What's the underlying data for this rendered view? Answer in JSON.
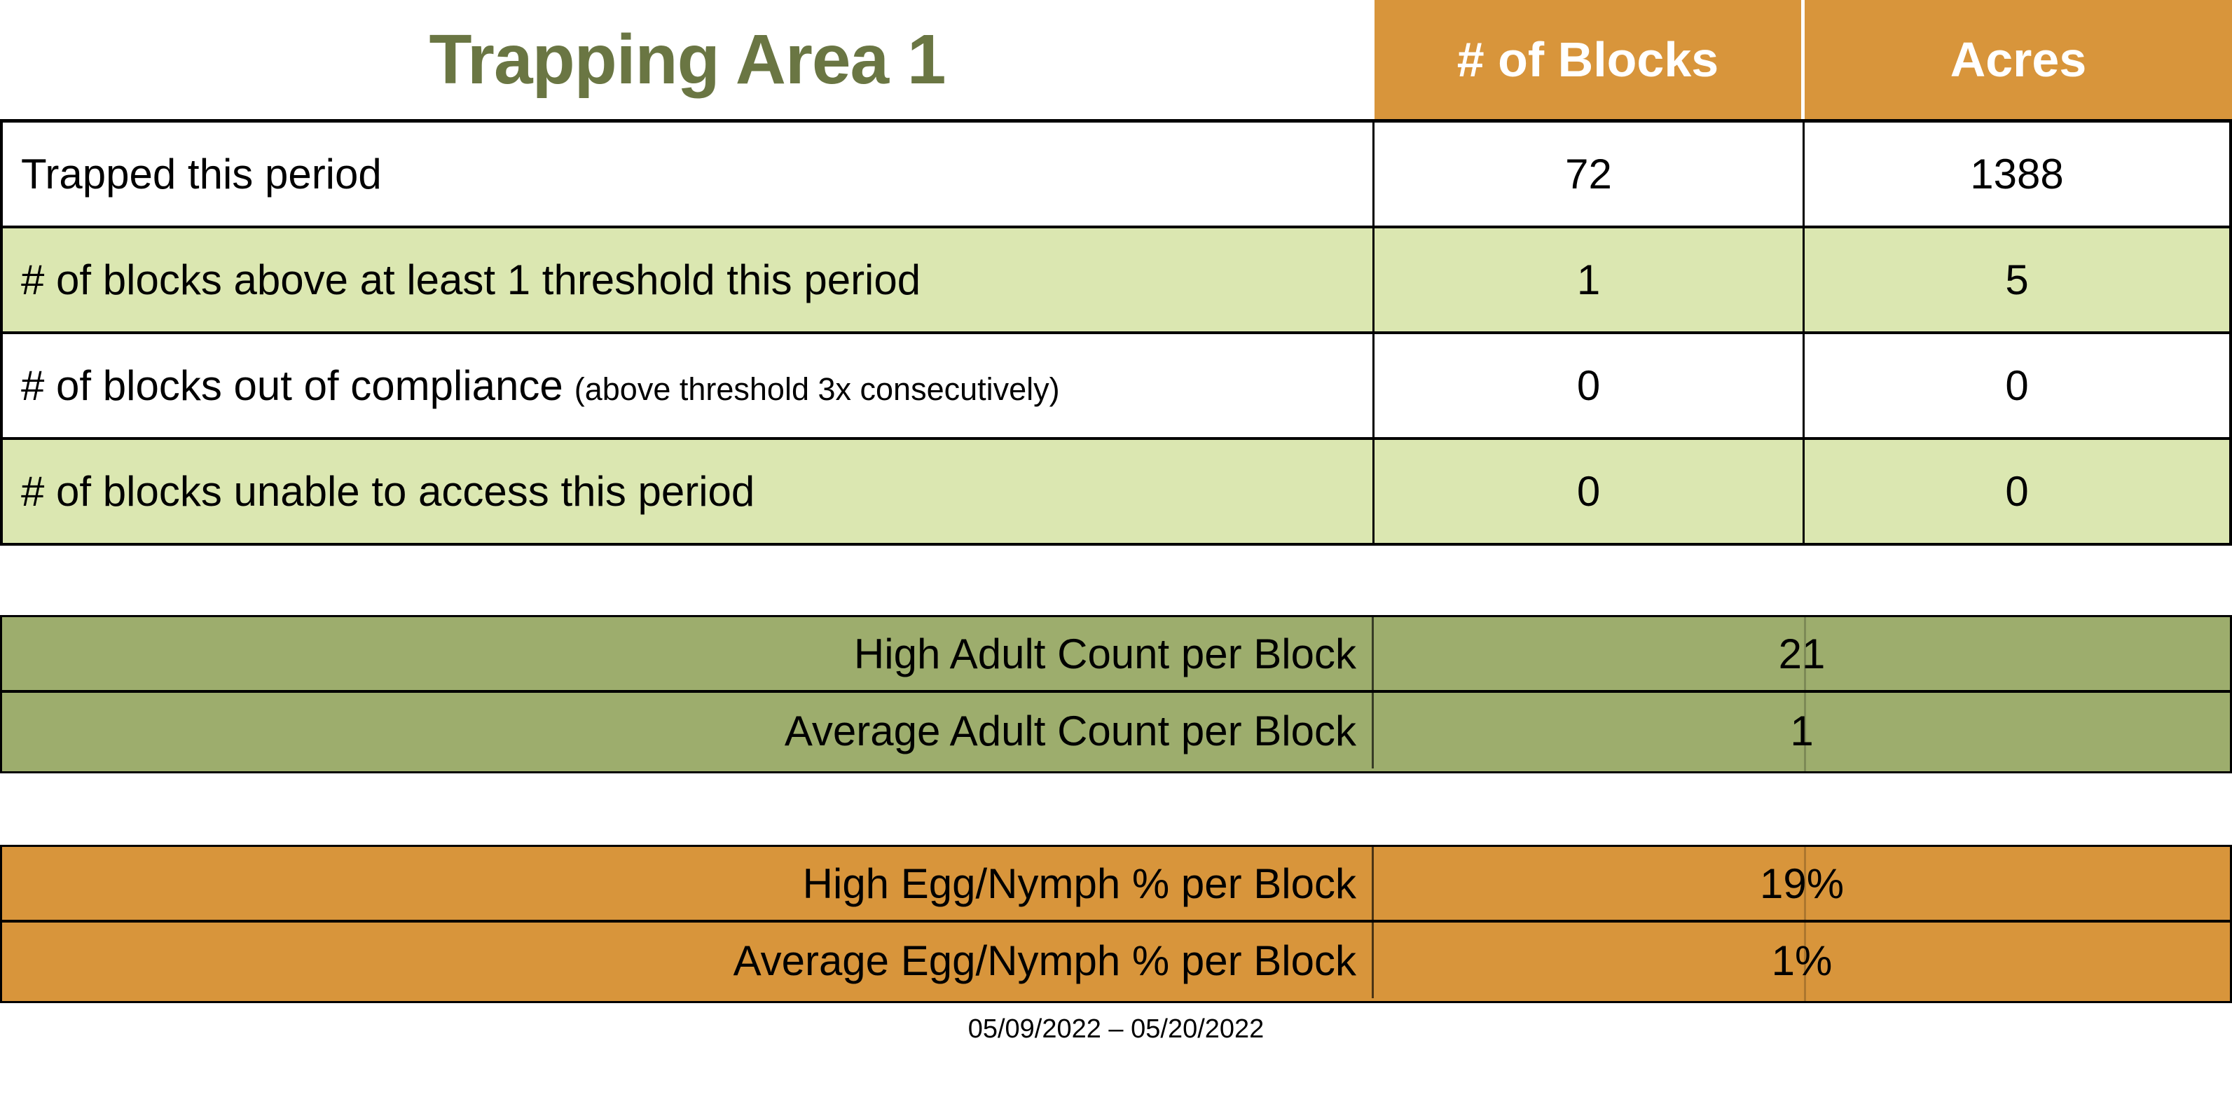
{
  "title": "Trapping Area 1",
  "columns": {
    "blocks": "# of Blocks",
    "acres": "Acres"
  },
  "main_table": {
    "rows": [
      {
        "label": "Trapped this period",
        "note": "",
        "blocks": "72",
        "acres": "1388"
      },
      {
        "label": "# of blocks above at least 1 threshold this period",
        "note": "",
        "blocks": "1",
        "acres": "5"
      },
      {
        "label": "# of blocks out of compliance",
        "note": "(above threshold 3x consecutively)",
        "blocks": "0",
        "acres": "0"
      },
      {
        "label": "# of blocks unable to access this period",
        "note": "",
        "blocks": "0",
        "acres": "0"
      }
    ]
  },
  "adult_section": {
    "rows": [
      {
        "label": "High Adult Count per Block",
        "value": "21"
      },
      {
        "label": "Average Adult Count per Block",
        "value": "1"
      }
    ]
  },
  "egg_section": {
    "rows": [
      {
        "label": "High Egg/Nymph % per Block",
        "value": "19%"
      },
      {
        "label": "Average Egg/Nymph % per Block",
        "value": "1%"
      }
    ]
  },
  "footer": {
    "date_range": "05/09/2022 – 05/20/2022"
  },
  "colors": {
    "header_orange": "#D8953B",
    "row_light_green": "#DBE7B1",
    "section_olive": "#9DAD6D",
    "title_green": "#6A7643",
    "header_text": "#FFFFFF",
    "body_text": "#000000"
  }
}
